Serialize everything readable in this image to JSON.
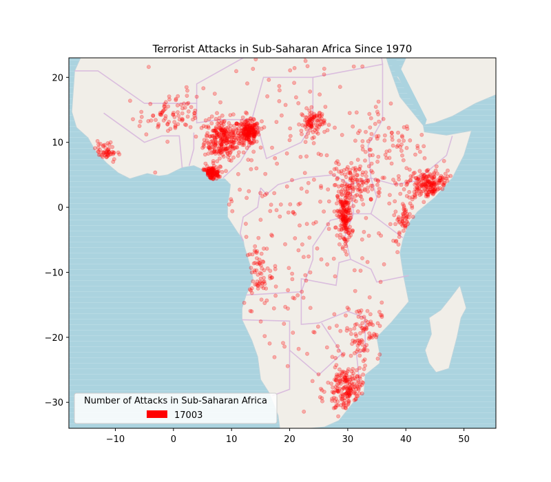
{
  "chart_data": {
    "type": "scatter",
    "title": "Terrorist Attacks in Sub-Saharan Africa Since 1970",
    "xlabel": "",
    "ylabel": "",
    "xlim": [
      -18,
      55.5
    ],
    "ylim": [
      -34,
      23
    ],
    "x_ticks": [
      -10,
      0,
      10,
      20,
      30,
      40,
      50
    ],
    "y_ticks": [
      20,
      10,
      0,
      -10,
      -20,
      -30
    ],
    "x_tick_labels": [
      "−10",
      "0",
      "10",
      "20",
      "30",
      "40",
      "50"
    ],
    "y_tick_labels": [
      "20",
      "10",
      "0",
      "−10",
      "−20",
      "−30"
    ],
    "grid": false,
    "legend": {
      "title": "Number of Attacks in Sub-Saharan Africa",
      "entries": [
        {
          "label": "17003",
          "color": "#ff0000"
        }
      ],
      "placement": "lower-left"
    },
    "colors": {
      "ocean": "#abd3df",
      "land": "#f1eee8",
      "borders": "#d6b4dc",
      "points": "#ff0000"
    },
    "series": [
      {
        "marker": "circle",
        "color": "#ff0000",
        "clusters": [
          {
            "lon": 8.5,
            "lat": 10.5,
            "spread_lon": 1.6,
            "spread_lat": 1.6,
            "count": 260
          },
          {
            "lon": 13,
            "lat": 11.5,
            "spread_lon": 0.9,
            "spread_lat": 0.9,
            "count": 200
          },
          {
            "lon": 6.5,
            "lat": 5.2,
            "spread_lon": 0.8,
            "spread_lat": 0.5,
            "count": 120
          },
          {
            "lon": 44,
            "lat": 3.5,
            "spread_lon": 2.0,
            "spread_lat": 1.2,
            "count": 190
          },
          {
            "lon": 29.5,
            "lat": -1.5,
            "spread_lon": 0.6,
            "spread_lat": 2.2,
            "count": 170
          },
          {
            "lon": 31.5,
            "lat": 3.5,
            "spread_lon": 2.2,
            "spread_lat": 1.5,
            "count": 110
          },
          {
            "lon": 24,
            "lat": 13,
            "spread_lon": 1.0,
            "spread_lat": 1.0,
            "count": 90
          },
          {
            "lon": 30,
            "lat": -28,
            "spread_lon": 1.8,
            "spread_lat": 2.0,
            "count": 190
          },
          {
            "lon": 32.5,
            "lat": -19,
            "spread_lon": 1.6,
            "spread_lat": 2.0,
            "count": 80
          },
          {
            "lon": -1,
            "lat": 14,
            "spread_lon": 2.5,
            "spread_lat": 1.5,
            "count": 80
          },
          {
            "lon": -12,
            "lat": 8.5,
            "spread_lon": 1.2,
            "spread_lat": 0.8,
            "count": 50
          },
          {
            "lon": 14,
            "lat": -10,
            "spread_lon": 1.5,
            "spread_lat": 2.5,
            "count": 60
          },
          {
            "lon": 40,
            "lat": -2,
            "spread_lon": 1.0,
            "spread_lat": 1.5,
            "count": 50
          },
          {
            "lon": 37,
            "lat": 10,
            "spread_lon": 3.5,
            "spread_lat": 3.5,
            "count": 80
          },
          {
            "lon": 20,
            "lat": 0,
            "spread_lon": 10,
            "spread_lat": 14,
            "count": 250
          }
        ]
      }
    ]
  }
}
